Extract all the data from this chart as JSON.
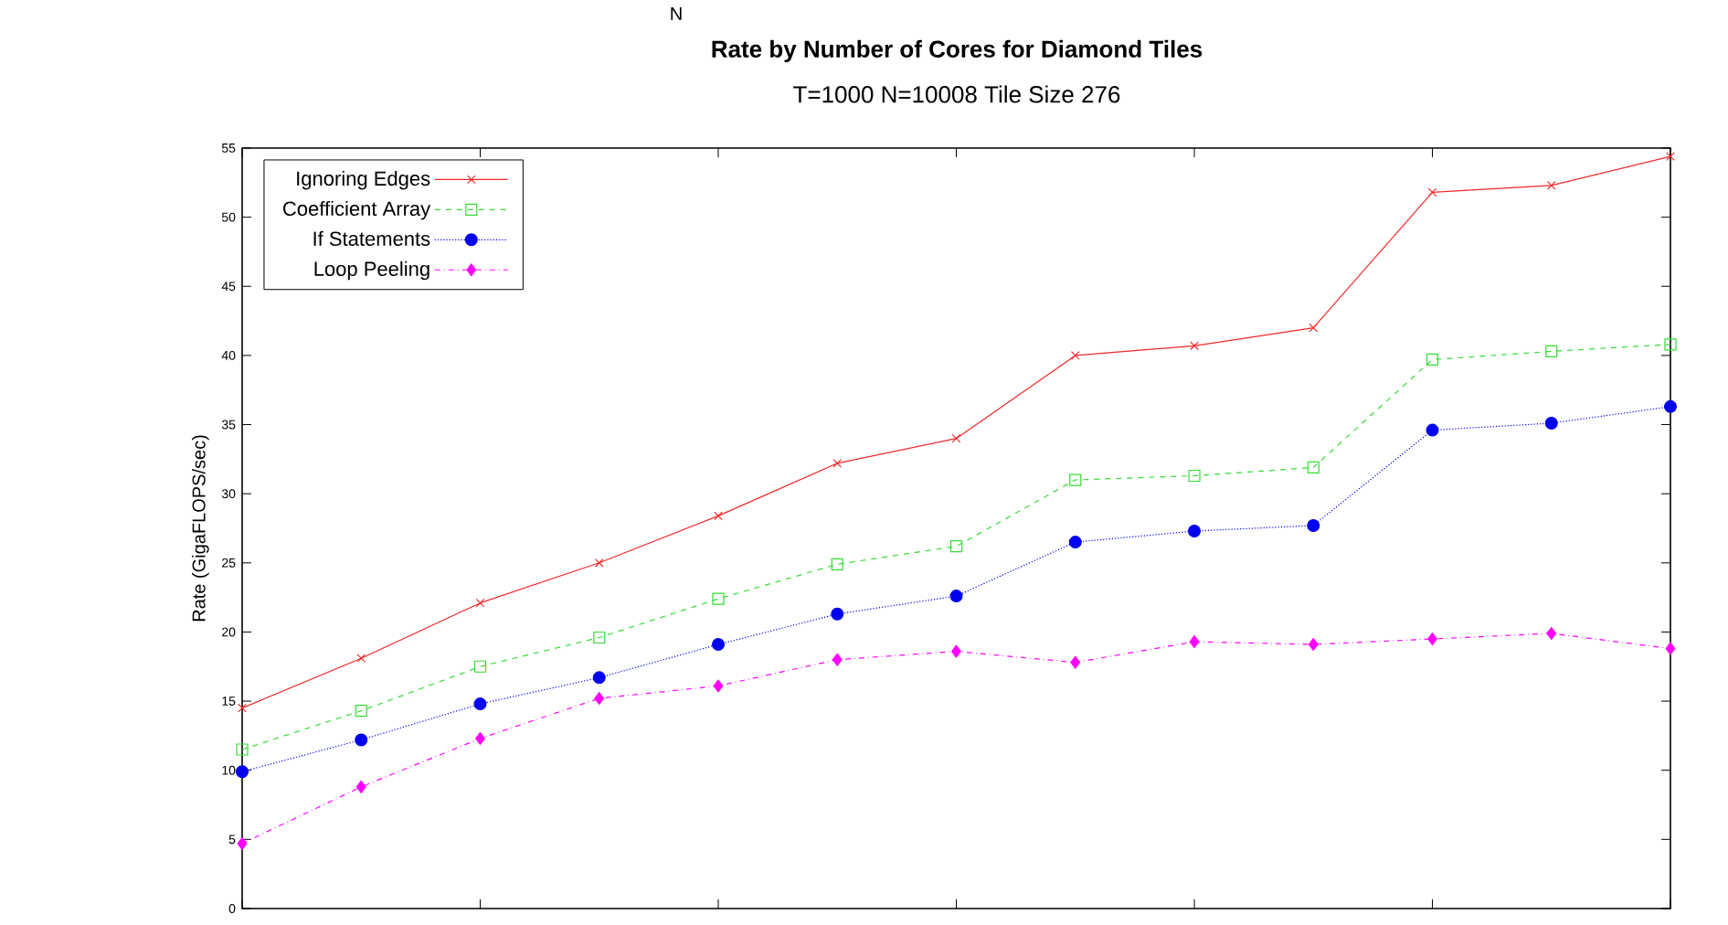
{
  "chart_data": {
    "type": "line",
    "title": "Rate by Number of Cores for Diamond Tiles",
    "subtitle": "T=1000  N=10008  Tile Size 276",
    "ylabel": "Rate (GigaFLOPS/sec)",
    "annotations": [
      "N"
    ],
    "categories": [
      null,
      null,
      null,
      null,
      null,
      null,
      null,
      null,
      null,
      null,
      null,
      null,
      null
    ],
    "ylim": [
      0,
      55
    ],
    "yticks": [
      0,
      5,
      10,
      15,
      20,
      25,
      30,
      35,
      40,
      45,
      50,
      55
    ],
    "tick_labels": "y",
    "legend": "top left",
    "series": [
      {
        "name": "Ignoring Edges",
        "color": "#f02828",
        "marker": "cross",
        "line_style": "solid",
        "values": [
          14.5,
          18.1,
          22.1,
          25.0,
          28.4,
          32.2,
          34.0,
          40.0,
          40.7,
          42.0,
          51.8,
          52.3,
          54.4
        ]
      },
      {
        "name": "Coefficient Array",
        "color": "#33dd33",
        "marker": "square",
        "line_style": "dashed",
        "values": [
          11.5,
          14.3,
          17.5,
          19.6,
          22.4,
          24.9,
          26.2,
          31.0,
          31.3,
          31.9,
          39.7,
          40.3,
          40.8
        ]
      },
      {
        "name": "If Statements",
        "color": "#0000f0",
        "marker": "circle",
        "line_style": "dotted",
        "values": [
          9.9,
          12.2,
          14.8,
          16.7,
          19.1,
          21.3,
          22.6,
          26.5,
          27.3,
          27.7,
          34.6,
          35.1,
          36.3
        ]
      },
      {
        "name": "Loop Peeling",
        "color": "#ff00ff",
        "marker": "diamond",
        "line_style": "dashdot",
        "values": [
          4.7,
          8.8,
          12.3,
          15.2,
          16.1,
          18.0,
          18.6,
          17.8,
          19.3,
          19.1,
          19.5,
          19.9,
          18.8
        ]
      }
    ]
  }
}
